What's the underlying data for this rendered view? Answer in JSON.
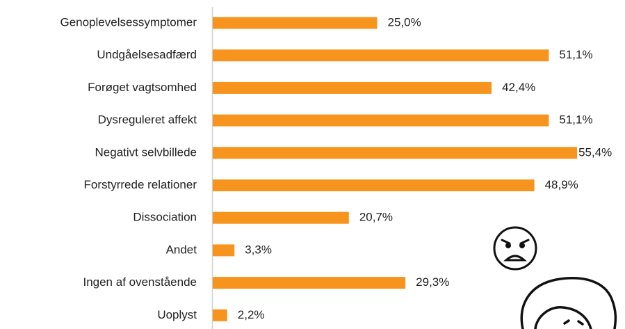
{
  "chart_data": {
    "type": "bar",
    "orientation": "horizontal",
    "categories": [
      "Genoplevelsessymptomer",
      "Undgåelsesadfærd",
      "Forøget vagtsomhed",
      "Dysreguleret affekt",
      "Negativt selvbillede",
      "Forstyrrede relationer",
      "Dissociation",
      "Andet",
      "Ingen af ovenstående",
      "Uoplyst"
    ],
    "values": [
      25.0,
      51.1,
      42.4,
      51.1,
      55.4,
      48.9,
      20.7,
      3.3,
      29.3,
      2.2
    ],
    "value_labels": [
      "25,0%",
      "51,1%",
      "42,4%",
      "51,1%",
      "55,4%",
      "48,9%",
      "20,7%",
      "3,3%",
      "29,3%",
      "2,2%"
    ],
    "color": "#f7941d"
  }
}
